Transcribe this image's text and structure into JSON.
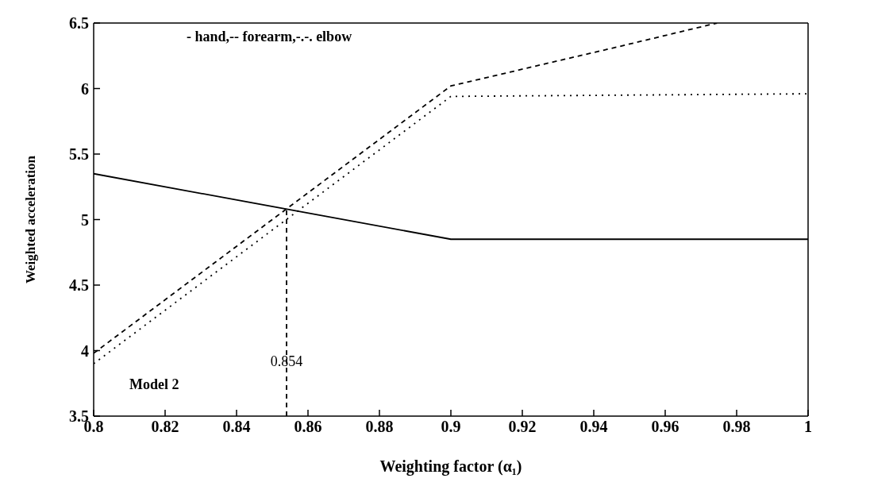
{
  "chart_data": {
    "type": "line",
    "xlabel": "Weighting factor (α₁)",
    "ylabel": "Weighted acceleration",
    "xlim": [
      0.8,
      1
    ],
    "xticks": [
      0.8,
      0.82,
      0.84,
      0.86,
      0.88,
      0.9,
      0.92,
      0.94,
      0.96,
      0.98,
      1
    ],
    "ylim": [
      3.5,
      6.5
    ],
    "yticks": [
      3.5,
      4,
      4.5,
      5,
      5.5,
      6,
      6.5
    ],
    "marker": "none",
    "series": [
      {
        "color": "#000000",
        "line_style": "solid",
        "x": [
          0.8,
          0.9,
          1
        ],
        "values": [
          5.35,
          4.85,
          4.85
        ]
      },
      {
        "color": "#000000",
        "line_style": "dashed",
        "x": [
          0.8,
          0.9,
          0.947,
          0.9745
        ],
        "values": [
          3.98,
          6.02,
          6.32,
          6.5
        ]
      },
      {
        "color": "#000000",
        "line_style": "dotted",
        "x": [
          0.8,
          0.9,
          1
        ],
        "values": [
          3.9,
          5.94,
          5.96
        ]
      },
      {
        "color": "#000000",
        "line_style": "dashed",
        "x": [
          0.854,
          0.854
        ],
        "values": [
          3.5,
          5.07
        ]
      }
    ],
    "annotations": [
      "- hand,-- forearm,-.-. elbow",
      "Model 2",
      {
        "text": "0.854",
        "x": 0.854,
        "y": 3.92
      }
    ]
  }
}
